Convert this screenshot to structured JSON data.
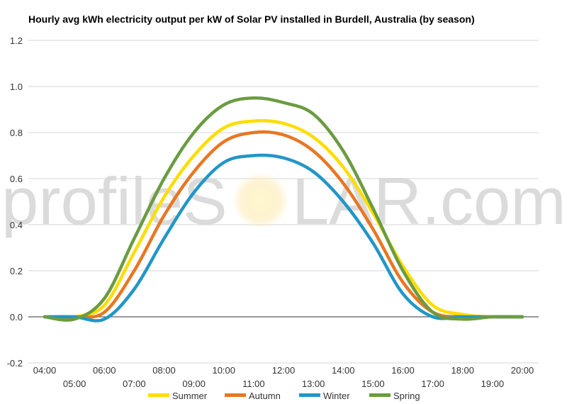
{
  "chart_data": {
    "type": "line",
    "title": "Hourly avg kWh electricity output per kW of Solar PV installed in Burdell, Australia (by season)",
    "xlabel": "",
    "ylabel": "",
    "ylim": [
      -0.2,
      1.2
    ],
    "yticks": [
      "-0.2",
      "0.0",
      "0.2",
      "0.4",
      "0.6",
      "0.8",
      "1.0",
      "1.2"
    ],
    "yticks_values": [
      -0.2,
      0.0,
      0.2,
      0.4,
      0.6,
      0.8,
      1.0,
      1.2
    ],
    "categories": [
      "04:00",
      "05:00",
      "06:00",
      "07:00",
      "08:00",
      "09:00",
      "10:00",
      "11:00",
      "12:00",
      "13:00",
      "14:00",
      "15:00",
      "16:00",
      "17:00",
      "18:00",
      "19:00",
      "20:00"
    ],
    "grid": true,
    "legend": "bottom",
    "series": [
      {
        "name": "Summer",
        "color": "#ffdd00",
        "values": [
          0,
          0,
          0.05,
          0.28,
          0.52,
          0.7,
          0.82,
          0.85,
          0.84,
          0.78,
          0.65,
          0.45,
          0.22,
          0.05,
          0.01,
          0,
          0
        ]
      },
      {
        "name": "Autumn",
        "color": "#e87722",
        "values": [
          0,
          0,
          0.02,
          0.2,
          0.44,
          0.63,
          0.76,
          0.8,
          0.79,
          0.72,
          0.58,
          0.38,
          0.15,
          0.02,
          0,
          0,
          0
        ]
      },
      {
        "name": "Winter",
        "color": "#2196c8",
        "values": [
          0,
          0,
          -0.01,
          0.12,
          0.34,
          0.54,
          0.67,
          0.7,
          0.69,
          0.63,
          0.5,
          0.32,
          0.1,
          0.0,
          0,
          0,
          0
        ]
      },
      {
        "name": "Spring",
        "color": "#6a9c40",
        "values": [
          0,
          -0.01,
          0.08,
          0.34,
          0.6,
          0.8,
          0.92,
          0.95,
          0.93,
          0.88,
          0.72,
          0.47,
          0.2,
          0.02,
          -0.01,
          0,
          0
        ]
      }
    ]
  },
  "watermark": {
    "text_left": "profileS",
    "text_right": "LAR.com"
  }
}
